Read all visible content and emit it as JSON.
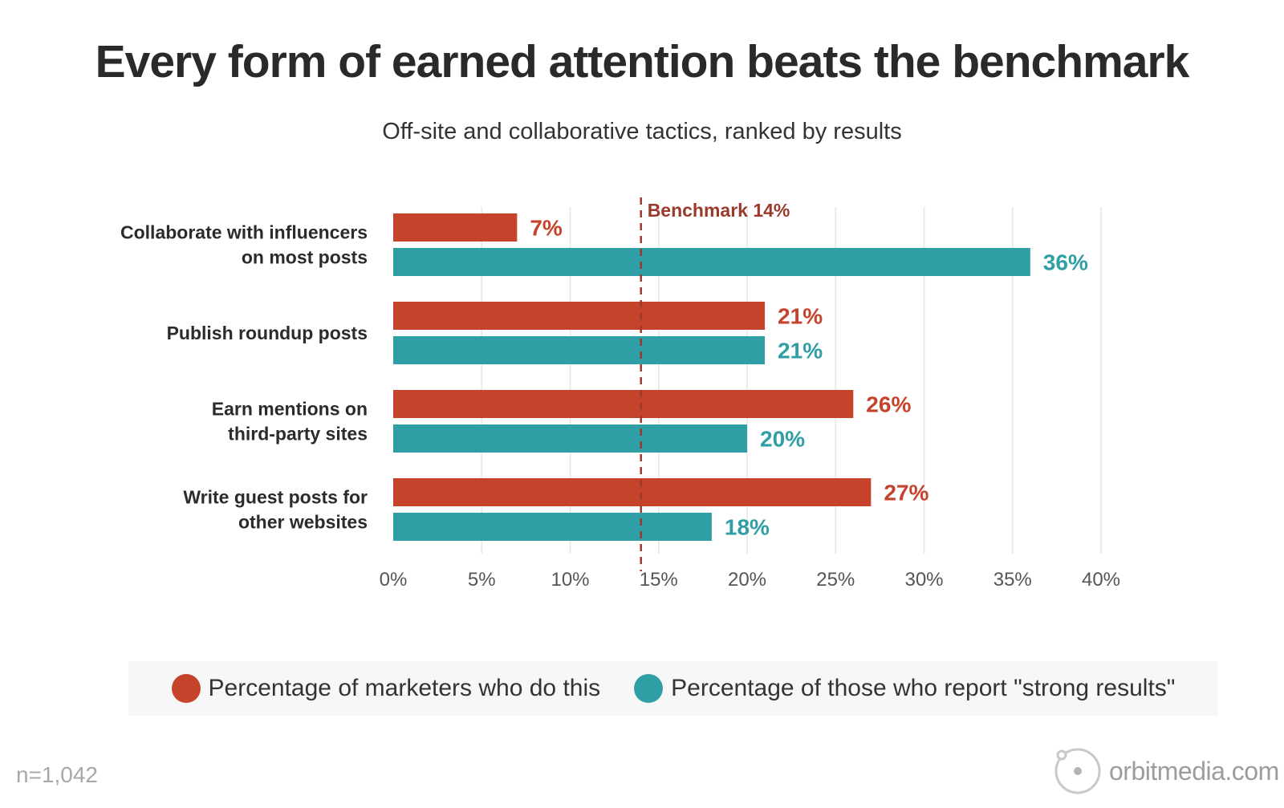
{
  "header": {
    "title": "Every form of earned attention beats the benchmark",
    "subtitle": "Off-site and collaborative tactics, ranked by results"
  },
  "colors": {
    "do_this": "#c5432b",
    "strong_results": "#2f9ea5",
    "benchmark": "#9a3a2a",
    "grid": "#e6e6e6",
    "label_text": "#2b2b2b",
    "tick_text": "#555555"
  },
  "chart_data": {
    "type": "bar",
    "orientation": "horizontal",
    "title": "Every form of earned attention beats the benchmark",
    "subtitle": "Off-site and collaborative tactics, ranked by results",
    "categories": [
      "Collaborate with influencers\non most posts",
      "Publish roundup posts",
      "Earn mentions on\nthird-party sites",
      "Write guest posts for\nother websites"
    ],
    "series": [
      {
        "name": "Percentage of marketers who do this",
        "values": [
          7,
          21,
          26,
          27
        ],
        "labels": [
          "7%",
          "21%",
          "26%",
          "27%"
        ]
      },
      {
        "name": "Percentage of those who report \"strong results\"",
        "values": [
          36,
          21,
          20,
          18
        ],
        "labels": [
          "36%",
          "21%",
          "20%",
          "18%"
        ]
      }
    ],
    "xlim": [
      0,
      40
    ],
    "xticks": [
      0,
      5,
      10,
      15,
      20,
      25,
      30,
      35,
      40
    ],
    "xtick_labels": [
      "0%",
      "5%",
      "10%",
      "15%",
      "20%",
      "25%",
      "30%",
      "35%",
      "40%"
    ],
    "benchmark": {
      "value": 14,
      "label": "Benchmark 14%"
    },
    "grid": true,
    "legend_position": "bottom"
  },
  "legend": {
    "do_this": "Percentage of marketers who do this",
    "strong_results": "Percentage of those who report \"strong results\""
  },
  "footer": {
    "sample_size": "n=1,042",
    "brand": "orbitmedia.com"
  }
}
